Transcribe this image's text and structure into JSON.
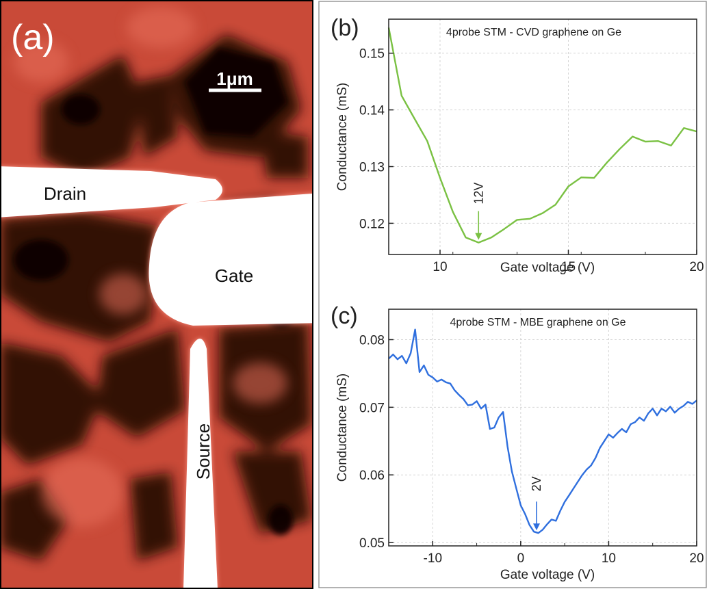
{
  "panel_a": {
    "label": "(a)",
    "scale_bar": "1μm",
    "electrodes": {
      "drain": "Drain",
      "gate": "Gate",
      "source": "Source"
    },
    "colors": {
      "bright": "#d14f3c",
      "dark": "#1a0604",
      "electrode": "#ffffff"
    }
  },
  "chart_data": [
    {
      "panel_label": "(b)",
      "type": "line",
      "title": "4probe STM - CVD graphene on Ge",
      "xlabel": "Gate voltage (V)",
      "ylabel": "Conductance (mS)",
      "xlim": [
        8,
        20
      ],
      "ylim": [
        0.1145,
        0.156
      ],
      "xticks": [
        10,
        15,
        20
      ],
      "yticks": [
        0.12,
        0.13,
        0.14,
        0.15
      ],
      "ytick_labels": [
        "0.12",
        "0.13",
        "0.14",
        "0.15"
      ],
      "grid": true,
      "color": "#7ac143",
      "annotation": {
        "text": "12V",
        "x": 11.5,
        "y": 0.1166
      },
      "series": [
        {
          "x": [
            8,
            8.5,
            9,
            9.5,
            10,
            10.5,
            11,
            11.5,
            12,
            12.5,
            13,
            13.5,
            14,
            14.5,
            15,
            15.5,
            16,
            16.5,
            17,
            17.5,
            18,
            18.5,
            19,
            19.5,
            20
          ],
          "values": [
            0.1545,
            0.1425,
            0.1385,
            0.1345,
            0.128,
            0.122,
            0.1175,
            0.1166,
            0.1175,
            0.119,
            0.1206,
            0.1208,
            0.1218,
            0.1233,
            0.1265,
            0.1281,
            0.128,
            0.1307,
            0.1331,
            0.1353,
            0.1344,
            0.1345,
            0.1337,
            0.1368,
            0.1362
          ]
        }
      ]
    },
    {
      "panel_label": "(c)",
      "type": "line",
      "title": "4probe STM - MBE graphene on Ge",
      "xlabel": "Gate voltage (V)",
      "ylabel": "Conductance (mS)",
      "xlim": [
        -15,
        20
      ],
      "ylim": [
        0.0495,
        0.0845
      ],
      "xticks": [
        -10,
        0,
        10,
        20
      ],
      "yticks": [
        0.05,
        0.06,
        0.07,
        0.08
      ],
      "ytick_labels": [
        "0.05",
        "0.06",
        "0.07",
        "0.08"
      ],
      "grid": true,
      "color": "#2f6fde",
      "annotation": {
        "text": "2V",
        "x": 1.8,
        "y": 0.0514
      },
      "series": [
        {
          "x": [
            -15,
            -14.5,
            -14,
            -13.5,
            -13,
            -12.5,
            -12,
            -11.5,
            -11,
            -10.5,
            -10,
            -9.5,
            -9,
            -8.5,
            -8,
            -7.5,
            -7,
            -6.5,
            -6,
            -5.5,
            -5,
            -4.5,
            -4,
            -3.5,
            -3,
            -2.5,
            -2,
            -1.5,
            -1,
            -0.5,
            0,
            0.5,
            1,
            1.5,
            2,
            2.5,
            3,
            3.5,
            4,
            4.5,
            5,
            5.5,
            6,
            6.5,
            7,
            7.5,
            8,
            8.5,
            9,
            9.5,
            10,
            10.5,
            11,
            11.5,
            12,
            12.5,
            13,
            13.5,
            14,
            14.5,
            15,
            15.5,
            16,
            16.5,
            17,
            17.5,
            18,
            18.5,
            19,
            19.5,
            20
          ],
          "values": [
            0.0772,
            0.0778,
            0.0771,
            0.0776,
            0.0765,
            0.078,
            0.0815,
            0.0752,
            0.0762,
            0.0748,
            0.0744,
            0.0738,
            0.0741,
            0.0737,
            0.0735,
            0.0725,
            0.0718,
            0.0712,
            0.0703,
            0.0704,
            0.0709,
            0.0698,
            0.0704,
            0.0668,
            0.067,
            0.0685,
            0.0693,
            0.0642,
            0.0605,
            0.058,
            0.0555,
            0.0542,
            0.0526,
            0.0516,
            0.0514,
            0.0519,
            0.0527,
            0.0534,
            0.0532,
            0.0547,
            0.056,
            0.057,
            0.058,
            0.059,
            0.06,
            0.0608,
            0.0614,
            0.0625,
            0.064,
            0.065,
            0.066,
            0.0655,
            0.0662,
            0.0668,
            0.0663,
            0.0675,
            0.0678,
            0.0685,
            0.068,
            0.0691,
            0.0698,
            0.0688,
            0.0698,
            0.0694,
            0.0701,
            0.0692,
            0.0698,
            0.0702,
            0.0708,
            0.0705,
            0.071
          ]
        }
      ]
    }
  ]
}
